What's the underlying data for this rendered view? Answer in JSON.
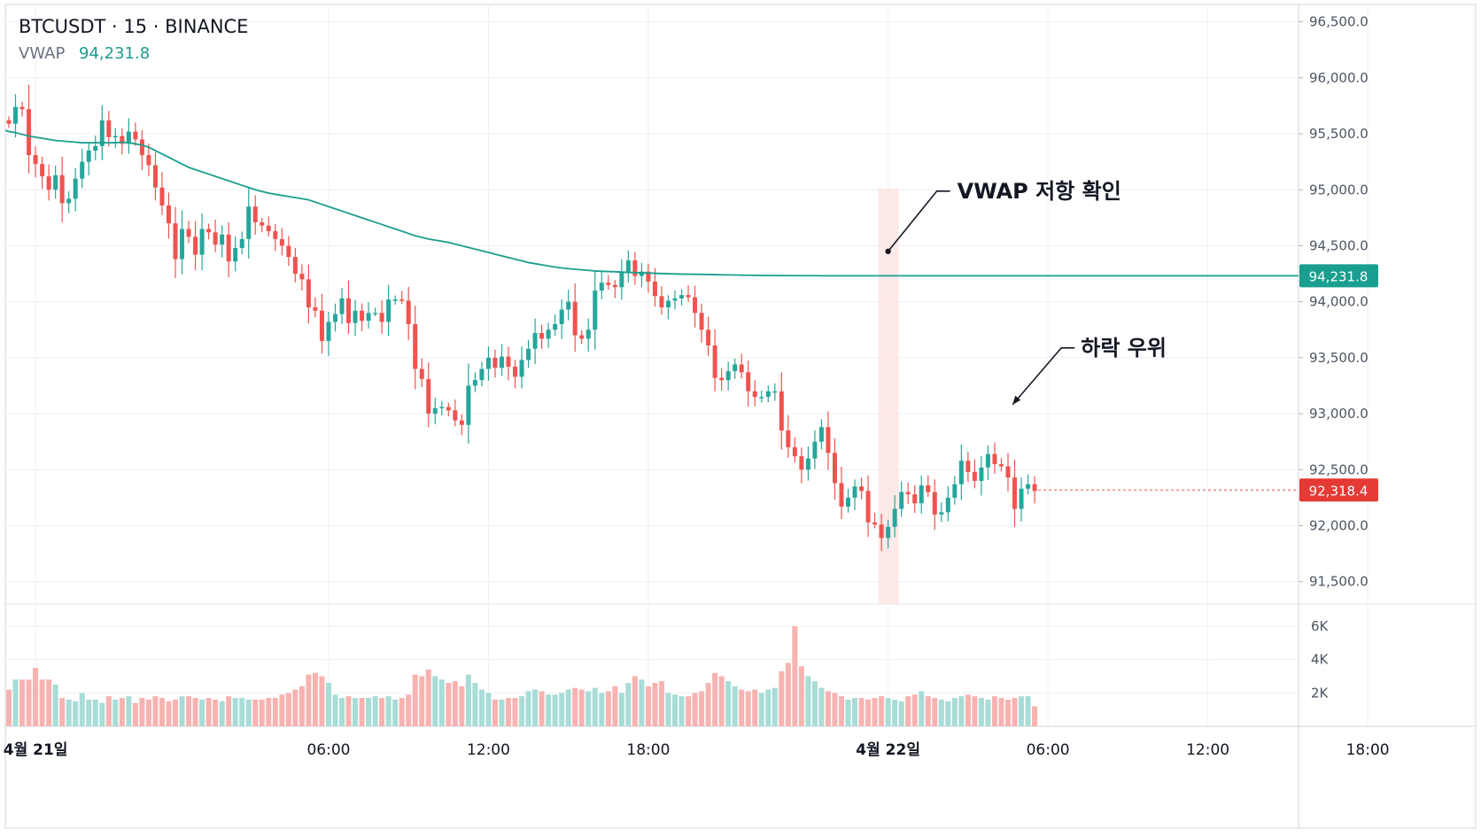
{
  "header": {
    "symbol_line": "BTCUSDT · 15 · BINANCE",
    "indicator_name": "VWAP",
    "indicator_value": "94,231.8"
  },
  "colors": {
    "up": "#26a69a",
    "down": "#ef5350",
    "vwap": "#1a9e8f",
    "grid": "#eef0f3",
    "text": "#131722",
    "muted": "#6b7280",
    "highlight": "#fde2e2"
  },
  "chart_data": {
    "type": "candlestick",
    "symbol": "BTCUSDT",
    "interval": "15",
    "exchange": "BINANCE",
    "price_axis": {
      "min": 91300,
      "max": 96600,
      "ticks": [
        96500,
        96000,
        95500,
        95000,
        94500,
        94000,
        93500,
        93000,
        92500,
        92000,
        91500
      ],
      "tick_labels": [
        "96,500.0",
        "96,000.0",
        "95,500.0",
        "95,000.0",
        "94,500.0",
        "94,000.0",
        "93,500.0",
        "93,000.0",
        "92,500.0",
        "92,000.0",
        "91,500.0"
      ]
    },
    "volume_axis": {
      "min": 0,
      "max": 6900,
      "ticks": [
        2000,
        4000,
        6000
      ],
      "tick_labels": [
        "2K",
        "4K",
        "6K"
      ]
    },
    "time_axis": {
      "labels": [
        "4월 21일",
        "06:00",
        "12:00",
        "18:00",
        "4월 22일",
        "06:00",
        "12:00",
        "18:00"
      ],
      "label_bars": [
        4,
        48,
        72,
        96,
        132,
        156,
        180,
        204
      ],
      "bold": [
        true,
        false,
        false,
        false,
        true,
        false,
        false,
        false
      ]
    },
    "candles_close": [
      95590,
      95740,
      95720,
      95310,
      95230,
      95120,
      95000,
      95130,
      94880,
      94920,
      95100,
      95250,
      95350,
      95390,
      95620,
      95470,
      95480,
      95410,
      95520,
      95450,
      95310,
      95220,
      95020,
      94860,
      94700,
      94380,
      94650,
      94580,
      94420,
      94650,
      94620,
      94510,
      94600,
      94360,
      94480,
      94560,
      94850,
      94710,
      94680,
      94630,
      94560,
      94500,
      94400,
      94250,
      94200,
      93950,
      93920,
      93650,
      93820,
      93890,
      94030,
      93810,
      93920,
      93830,
      93900,
      93900,
      93820,
      94020,
      94020,
      94010,
      93800,
      93400,
      93310,
      93000,
      93050,
      93060,
      93030,
      92940,
      92900,
      93250,
      93300,
      93400,
      93500,
      93410,
      93510,
      93420,
      93330,
      93480,
      93580,
      93720,
      93670,
      93750,
      93800,
      93930,
      94000,
      93700,
      93670,
      93750,
      94100,
      94170,
      94150,
      94130,
      94260,
      94370,
      94230,
      94270,
      94180,
      94050,
      93950,
      94010,
      94030,
      94060,
      94040,
      93900,
      93750,
      93610,
      93320,
      93300,
      93380,
      93440,
      93370,
      93200,
      93150,
      93150,
      93200,
      93200,
      92850,
      92700,
      92620,
      92500,
      92600,
      92750,
      92880,
      92650,
      92380,
      92170,
      92250,
      92350,
      92310,
      92030,
      92010,
      91890,
      91990,
      92150,
      92300,
      92280,
      92200,
      92360,
      92300,
      92100,
      92120,
      92250,
      92370,
      92580,
      92480,
      92400,
      92520,
      92640,
      92550,
      92530,
      92430,
      92150,
      92330,
      92370,
      92310
    ],
    "volume": [
      2200,
      2800,
      2800,
      2800,
      3500,
      2800,
      2800,
      2500,
      1700,
      1600,
      1500,
      2000,
      1600,
      1600,
      1400,
      1800,
      1600,
      1700,
      1800,
      1400,
      1700,
      1600,
      1800,
      1700,
      1500,
      1600,
      1800,
      1800,
      1700,
      1600,
      1700,
      1600,
      1500,
      1800,
      1700,
      1700,
      1600,
      1600,
      1600,
      1700,
      1700,
      1900,
      2000,
      2200,
      2400,
      3100,
      3200,
      3000,
      2600,
      1900,
      1700,
      1800,
      1700,
      1700,
      1700,
      1800,
      1700,
      1800,
      1600,
      1700,
      1900,
      3100,
      3000,
      3400,
      3000,
      2800,
      2600,
      2700,
      2400,
      3100,
      2600,
      2200,
      2000,
      1600,
      1600,
      1700,
      1700,
      1800,
      2100,
      2200,
      2100,
      1900,
      1900,
      2000,
      2200,
      2300,
      2200,
      2100,
      2300,
      2000,
      2100,
      2400,
      2000,
      2600,
      3000,
      2800,
      2400,
      2600,
      2700,
      2000,
      1900,
      1800,
      1800,
      2000,
      2100,
      2600,
      3200,
      3000,
      2700,
      2400,
      2200,
      2100,
      2200,
      2000,
      2200,
      2300,
      3300,
      3800,
      6000,
      3600,
      3000,
      2700,
      2300,
      2100,
      2000,
      1800,
      1600,
      1700,
      1700,
      1600,
      1700,
      1800,
      1700,
      1600,
      1500,
      1800,
      1900,
      2100,
      1800,
      1700,
      1600,
      1500,
      1700,
      1800,
      1900,
      1800,
      1700,
      1600,
      1800,
      1700,
      1600,
      1700,
      1800,
      1800,
      1200
    ],
    "vwap": [
      95520,
      95510,
      95495,
      95480,
      95470,
      95460,
      95450,
      95440,
      95435,
      95430,
      95425,
      95420,
      95420,
      95420,
      95420,
      95420,
      95420,
      95425,
      95420,
      95410,
      95400,
      95380,
      95350,
      95320,
      95290,
      95260,
      95230,
      95200,
      95180,
      95160,
      95140,
      95120,
      95100,
      95080,
      95060,
      95040,
      95020,
      95000,
      94985,
      94970,
      94960,
      94950,
      94940,
      94930,
      94920,
      94910,
      94890,
      94870,
      94850,
      94830,
      94810,
      94790,
      94770,
      94750,
      94730,
      94710,
      94690,
      94670,
      94650,
      94630,
      94610,
      94590,
      94575,
      94560,
      94550,
      94540,
      94530,
      94515,
      94500,
      94485,
      94470,
      94455,
      94440,
      94425,
      94410,
      94395,
      94380,
      94365,
      94350,
      94340,
      94330,
      94320,
      94310,
      94302,
      94295,
      94290,
      94285,
      94280,
      94275,
      94272,
      94270,
      94268,
      94265,
      94262,
      94260,
      94258,
      94256,
      94254,
      94252,
      94250,
      94248,
      94247,
      94246,
      94245,
      94244,
      94243,
      94242,
      94241,
      94240,
      94239,
      94238,
      94237,
      94236,
      94235,
      94235,
      94234,
      94234,
      94234,
      94233,
      94233,
      94233,
      94233,
      94232,
      94232,
      94232,
      94232,
      94232,
      94232,
      94232,
      94232,
      94232,
      94232,
      94232,
      94232,
      94232,
      94232,
      94232,
      94232,
      94232,
      94232,
      94232,
      94232,
      94232,
      94232,
      94232,
      94232,
      94232,
      94232,
      94232,
      94232,
      94232,
      94232,
      94232,
      94232
    ],
    "current_price": 92318.4,
    "current_price_label": "92,318.4",
    "vwap_label": "94,231.8",
    "highlight_bar": 132,
    "annotations": [
      {
        "text": "VWAP 저항 확인",
        "bar": 132,
        "price": 94450
      },
      {
        "text": "하락 우위",
        "bar": 162,
        "price": 93050
      }
    ],
    "grid": true
  }
}
